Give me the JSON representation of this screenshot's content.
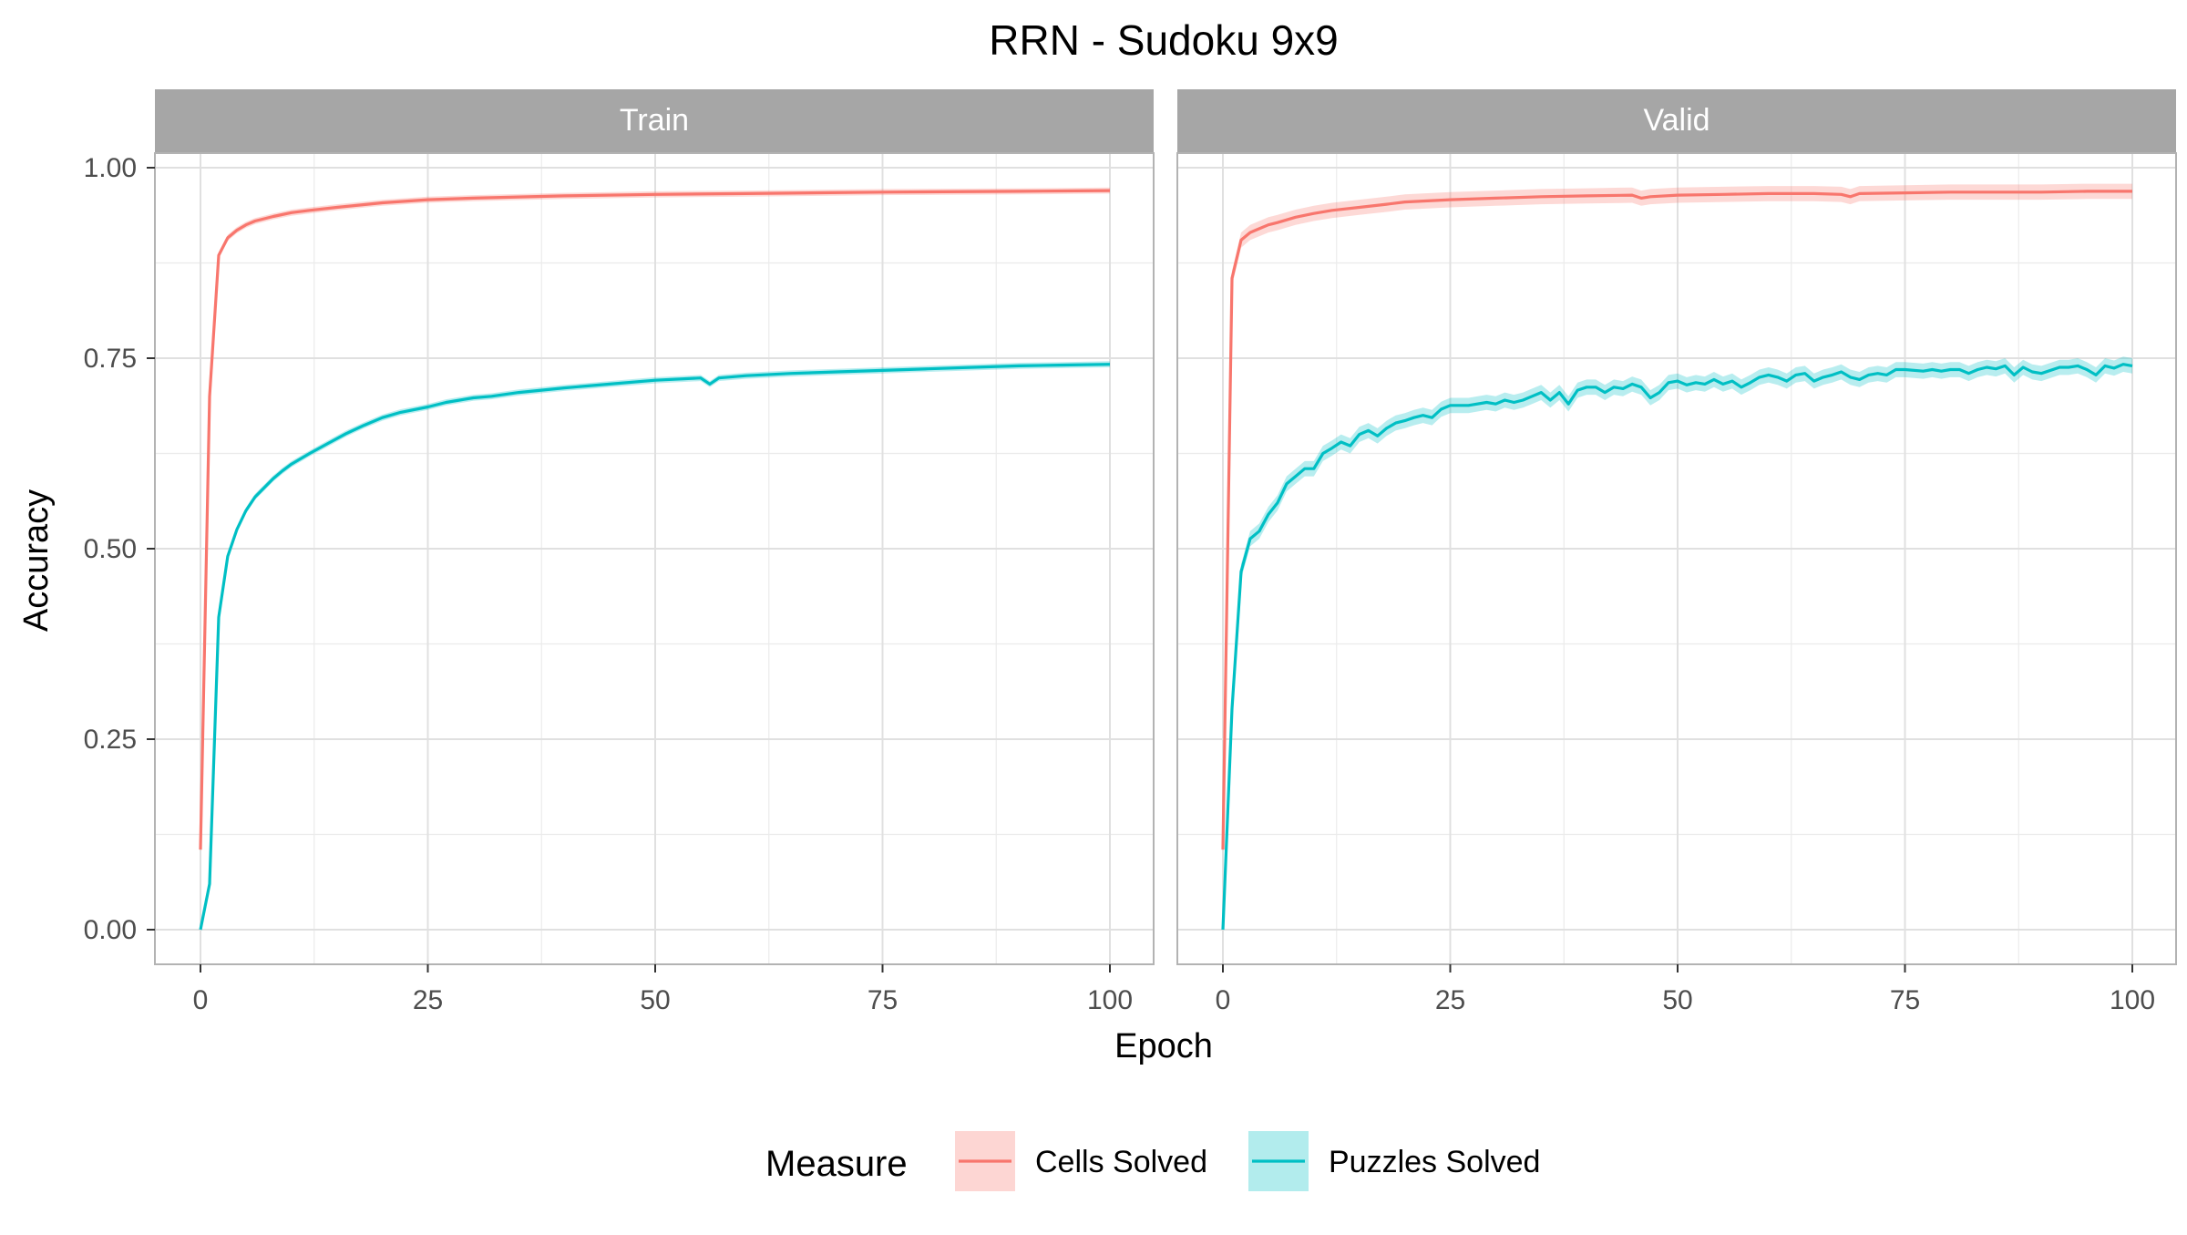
{
  "chart_data": {
    "type": "line",
    "title": "RRN - Sudoku 9x9",
    "xlabel": "Epoch",
    "ylabel": "Accuracy",
    "xlim": [
      0,
      100
    ],
    "ylim": [
      0,
      1.0
    ],
    "x_ticks": [
      "0",
      "25",
      "50",
      "75",
      "100"
    ],
    "y_ticks": [
      "0.00",
      "0.25",
      "0.50",
      "0.75",
      "1.00"
    ],
    "grid": true,
    "legend": {
      "title": "Measure",
      "position": "bottom",
      "entries": [
        "Cells Solved",
        "Puzzles Solved"
      ]
    },
    "colors": {
      "Cells Solved": "#F8766D",
      "Puzzles Solved": "#00BFC4",
      "strip_bg": "#A6A6A6",
      "strip_text": "#FFFFFF",
      "grid": "#E0E0E0",
      "panel_border": "#B3B3B3"
    },
    "facets": [
      {
        "label": "Train",
        "series": [
          {
            "name": "Cells Solved",
            "x": [
              0,
              1,
              2,
              3,
              4,
              5,
              6,
              7,
              8,
              10,
              12,
              15,
              20,
              25,
              30,
              40,
              50,
              60,
              75,
              90,
              100
            ],
            "y": [
              0.105,
              0.7,
              0.885,
              0.908,
              0.918,
              0.925,
              0.93,
              0.933,
              0.936,
              0.941,
              0.944,
              0.948,
              0.954,
              0.958,
              0.96,
              0.963,
              0.965,
              0.966,
              0.968,
              0.969,
              0.97
            ]
          },
          {
            "name": "Puzzles Solved",
            "x": [
              0,
              1,
              2,
              3,
              4,
              5,
              6,
              7,
              8,
              9,
              10,
              12,
              14,
              16,
              18,
              20,
              22,
              25,
              27,
              30,
              32,
              35,
              40,
              45,
              50,
              55,
              56,
              57,
              60,
              65,
              70,
              75,
              80,
              85,
              90,
              95,
              100
            ],
            "y": [
              0.0,
              0.06,
              0.41,
              0.49,
              0.525,
              0.55,
              0.568,
              0.58,
              0.592,
              0.602,
              0.611,
              0.625,
              0.638,
              0.651,
              0.662,
              0.672,
              0.679,
              0.686,
              0.692,
              0.698,
              0.7,
              0.705,
              0.711,
              0.716,
              0.721,
              0.724,
              0.716,
              0.724,
              0.727,
              0.73,
              0.732,
              0.734,
              0.736,
              0.738,
              0.74,
              0.741,
              0.742
            ]
          }
        ]
      },
      {
        "label": "Valid",
        "series": [
          {
            "name": "Cells Solved",
            "x": [
              0,
              1,
              2,
              3,
              4,
              5,
              6,
              8,
              10,
              12,
              15,
              18,
              20,
              25,
              30,
              35,
              40,
              45,
              46,
              47,
              50,
              55,
              60,
              65,
              68,
              69,
              70,
              75,
              80,
              85,
              90,
              95,
              100
            ],
            "y": [
              0.105,
              0.855,
              0.905,
              0.915,
              0.92,
              0.925,
              0.928,
              0.935,
              0.94,
              0.944,
              0.948,
              0.952,
              0.955,
              0.958,
              0.96,
              0.962,
              0.963,
              0.964,
              0.96,
              0.962,
              0.964,
              0.965,
              0.966,
              0.966,
              0.965,
              0.962,
              0.966,
              0.967,
              0.968,
              0.968,
              0.968,
              0.969,
              0.969
            ]
          },
          {
            "name": "Puzzles Solved",
            "x": [
              0,
              1,
              2,
              3,
              4,
              5,
              6,
              7,
              8,
              9,
              10,
              11,
              12,
              13,
              14,
              15,
              16,
              17,
              18,
              19,
              20,
              21,
              22,
              23,
              24,
              25,
              27,
              29,
              30,
              31,
              32,
              33,
              34,
              35,
              36,
              37,
              38,
              39,
              40,
              41,
              42,
              43,
              44,
              45,
              46,
              47,
              48,
              49,
              50,
              51,
              52,
              53,
              54,
              55,
              56,
              57,
              58,
              59,
              60,
              61,
              62,
              63,
              64,
              65,
              66,
              67,
              68,
              69,
              70,
              71,
              72,
              73,
              74,
              75,
              77,
              78,
              79,
              80,
              81,
              82,
              83,
              84,
              85,
              86,
              87,
              88,
              89,
              90,
              92,
              93,
              94,
              95,
              96,
              97,
              98,
              99,
              100
            ],
            "y": [
              0.0,
              0.29,
              0.47,
              0.513,
              0.523,
              0.545,
              0.56,
              0.585,
              0.595,
              0.605,
              0.605,
              0.625,
              0.632,
              0.64,
              0.635,
              0.65,
              0.655,
              0.648,
              0.658,
              0.665,
              0.668,
              0.672,
              0.675,
              0.672,
              0.683,
              0.688,
              0.688,
              0.692,
              0.69,
              0.695,
              0.692,
              0.695,
              0.7,
              0.705,
              0.695,
              0.705,
              0.69,
              0.708,
              0.712,
              0.712,
              0.705,
              0.712,
              0.71,
              0.716,
              0.712,
              0.698,
              0.705,
              0.718,
              0.72,
              0.715,
              0.718,
              0.716,
              0.722,
              0.716,
              0.72,
              0.712,
              0.718,
              0.725,
              0.728,
              0.725,
              0.72,
              0.728,
              0.73,
              0.72,
              0.725,
              0.728,
              0.732,
              0.725,
              0.722,
              0.728,
              0.73,
              0.728,
              0.735,
              0.735,
              0.733,
              0.735,
              0.733,
              0.735,
              0.735,
              0.73,
              0.735,
              0.738,
              0.736,
              0.74,
              0.728,
              0.738,
              0.732,
              0.73,
              0.738,
              0.738,
              0.74,
              0.735,
              0.728,
              0.74,
              0.737,
              0.742,
              0.74
            ]
          }
        ]
      }
    ]
  }
}
